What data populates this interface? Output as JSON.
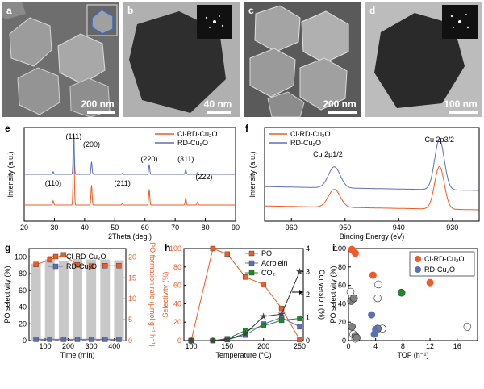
{
  "panels": {
    "a": {
      "label": "a",
      "scale": "200 nm"
    },
    "b": {
      "label": "b",
      "scale": "40 nm"
    },
    "c": {
      "label": "c",
      "scale": "200 nm"
    },
    "d": {
      "label": "d",
      "scale": "100 nm"
    },
    "e": {
      "label": "e"
    },
    "f": {
      "label": "f"
    },
    "g": {
      "label": "g"
    },
    "h": {
      "label": "h"
    },
    "i": {
      "label": "i"
    }
  },
  "chart_data": [
    {
      "panel": "e",
      "type": "line",
      "xlabel": "2Theta (deg.)",
      "ylabel": "Intensity (a.u.)",
      "xlim": [
        20,
        90
      ],
      "xticks": [
        20,
        30,
        40,
        50,
        60,
        70,
        80,
        90
      ],
      "series": [
        {
          "name": "Cl-RD-Cu₂O",
          "color": "#f15a24"
        },
        {
          "name": "RD-Cu₂O",
          "color": "#5b6fb5"
        }
      ],
      "peaks": [
        29.6,
        36.4,
        42.3,
        52.5,
        61.4,
        73.5,
        77.4
      ],
      "peak_labels": [
        "(110)",
        "(111)",
        "(200)",
        "(211)",
        "(220)",
        "(311)",
        "(222)"
      ]
    },
    {
      "panel": "f",
      "type": "line",
      "xlabel": "Binding Energy (eV)",
      "ylabel": "Intensity (a.u.)",
      "xlim": [
        965,
        925
      ],
      "xticks": [
        960,
        950,
        940,
        930
      ],
      "series": [
        {
          "name": "Cl-RD-Cu₂O",
          "color": "#f15a24"
        },
        {
          "name": "RD-Cu₂O",
          "color": "#5b6fb5"
        }
      ],
      "peak_labels": [
        {
          "text": "Cu 2p1/2",
          "x": 952
        },
        {
          "text": "Cu 2p3/2",
          "x": 932.4
        }
      ]
    },
    {
      "panel": "g",
      "type": "bar",
      "xlabel": "Time (min)",
      "ylabel": "PO selectivity (%)",
      "ylabel_right": "PO formation rate (μmol g⁻¹ h⁻¹)",
      "xlim": [
        30,
        450
      ],
      "ylim": [
        0,
        110
      ],
      "ylim_right": [
        0,
        22
      ],
      "xticks": [
        100,
        200,
        300,
        400
      ],
      "yticks": [
        0,
        20,
        40,
        60,
        80,
        100
      ],
      "yticks_right": [
        0,
        5,
        10,
        15,
        20
      ],
      "x": [
        60,
        120,
        180,
        240,
        300,
        360,
        420
      ],
      "bars": [
        92,
        97,
        95,
        98,
        97,
        97,
        96
      ],
      "series": [
        {
          "name": "Cl-RD-Cu₂O",
          "color": "#f15a24",
          "values": [
            18.2,
            19.3,
            20.5,
            18.1,
            17.8,
            17.9,
            17.9
          ]
        },
        {
          "name": "RD-Cu₂O",
          "color": "#5b6fb5",
          "values": [
            0.3,
            0.3,
            0.3,
            0.3,
            0.3,
            0.3,
            0.3
          ]
        }
      ]
    },
    {
      "panel": "h",
      "type": "line",
      "xlabel": "Temperature (°C)",
      "ylabel": "Selectivity (%)",
      "ylabel_right": "Conversion (%)",
      "xlim": [
        90,
        255
      ],
      "ylim": [
        0,
        100
      ],
      "ylim_right": [
        0,
        4
      ],
      "xticks": [
        100,
        150,
        200,
        250
      ],
      "yticks": [
        0,
        20,
        40,
        60,
        80,
        100
      ],
      "yticks_right": [
        0,
        1,
        2,
        3,
        4
      ],
      "x": [
        100,
        130,
        150,
        175,
        200,
        225,
        250
      ],
      "series": [
        {
          "name": "PO",
          "color": "#f15a24",
          "values": [
            0,
            100,
            94,
            69,
            61,
            35,
            1
          ]
        },
        {
          "name": "Acrolein",
          "color": "#5b6fb5",
          "values": [
            0,
            0,
            1,
            6,
            18,
            25,
            15
          ]
        },
        {
          "name": "CO₂",
          "color": "#1a8a2a",
          "values": [
            0,
            0,
            2,
            11,
            16,
            22,
            24
          ]
        }
      ],
      "conversion": [
        0,
        0,
        0.05,
        0.3,
        1.05,
        1.15,
        3.0
      ]
    },
    {
      "panel": "i",
      "type": "scatter",
      "xlabel": "TOF (h⁻¹)",
      "ylabel": "PO selectivity (%)",
      "xlim": [
        0,
        19
      ],
      "ylim": [
        0,
        100
      ],
      "xticks": [
        0,
        4,
        8,
        12,
        16
      ],
      "yticks": [
        0,
        20,
        40,
        60,
        80,
        100
      ],
      "series": [
        {
          "name": "Cl-RD-Cu₂O",
          "color": "#f15a24",
          "points": [
            [
              0.5,
              99
            ],
            [
              1.0,
              95
            ],
            [
              3.6,
              71
            ],
            [
              12.0,
              63
            ]
          ]
        },
        {
          "name": "RD-Cu₂O",
          "color": "#5b6fb5",
          "points": [
            [
              3.4,
              28
            ],
            [
              3.8,
              7
            ],
            [
              4.0,
              12
            ]
          ]
        }
      ],
      "others": [
        {
          "color": "#ffffff",
          "points": [
            [
              0.3,
              53
            ],
            [
              0.7,
              7
            ],
            [
              1.0,
              2
            ],
            [
              4.4,
              61
            ],
            [
              4.3,
              46
            ],
            [
              5.0,
              13
            ],
            [
              17.5,
              15
            ]
          ]
        },
        {
          "color": "#808080",
          "points": [
            [
              0.4,
              43
            ],
            [
              0.8,
              46
            ],
            [
              0.5,
              15
            ],
            [
              1.0,
              5
            ],
            [
              1.2,
              3
            ],
            [
              4.3,
              13
            ]
          ]
        },
        {
          "color": "#1a8a2a",
          "points": [
            [
              7.8,
              52
            ]
          ]
        }
      ]
    }
  ]
}
